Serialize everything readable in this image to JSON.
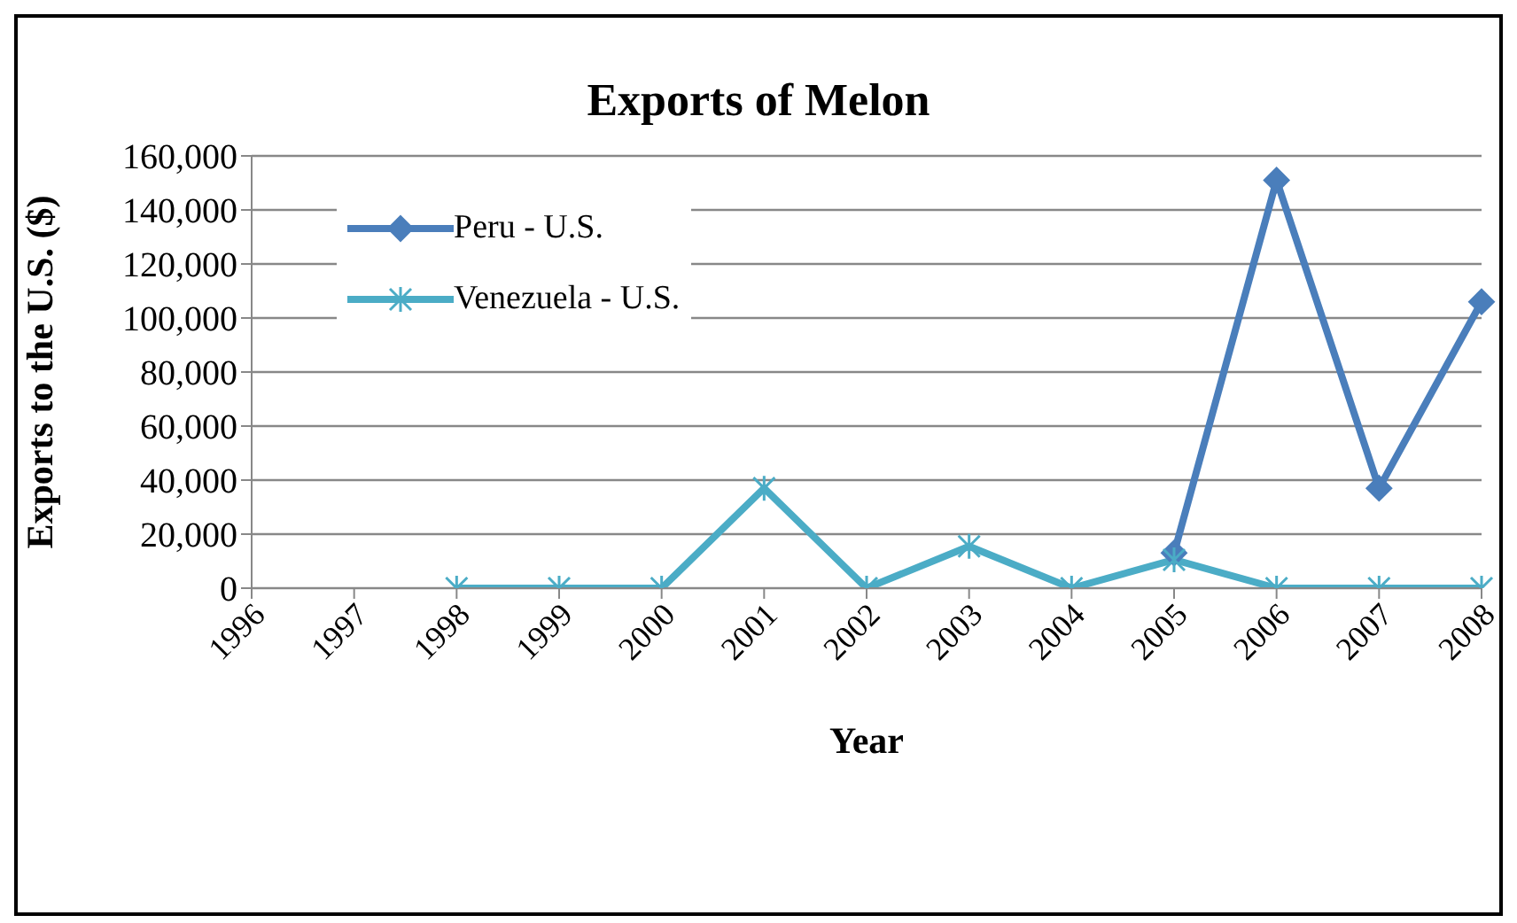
{
  "chart_data": {
    "type": "line",
    "title": "Exports of Melon",
    "xlabel": "Year",
    "ylabel": "Exports to the U.S. ($)",
    "categories": [
      "1996",
      "1997",
      "1998",
      "1999",
      "2000",
      "2001",
      "2002",
      "2003",
      "2004",
      "2005",
      "2006",
      "2007",
      "2008"
    ],
    "series": [
      {
        "name": "Peru - U.S.",
        "color": "#4a7ebb",
        "marker": "diamond",
        "values": [
          null,
          null,
          null,
          null,
          null,
          null,
          null,
          null,
          null,
          13000,
          151000,
          37000,
          106000
        ]
      },
      {
        "name": "Venezuela - U.S.",
        "color": "#4bacc6",
        "marker": "cross",
        "values": [
          null,
          null,
          0,
          0,
          0,
          37000,
          0,
          15500,
          0,
          10500,
          0,
          0,
          0
        ]
      }
    ],
    "ylim": [
      0,
      160000
    ],
    "yticks": [
      0,
      {
        "value": 20000,
        "label": "20,000"
      },
      {
        "value": 40000,
        "label": "40,000"
      },
      {
        "value": 60000,
        "label": "60,000"
      },
      {
        "value": 80000,
        "label": "80,000"
      },
      {
        "value": 100000,
        "label": "100,000"
      },
      {
        "value": 120000,
        "label": "120,000"
      },
      {
        "value": 140000,
        "label": "140,000"
      },
      {
        "value": 160000,
        "label": "160,000"
      }
    ],
    "grid": "y",
    "legend": "top left",
    "line_style": "solid"
  }
}
